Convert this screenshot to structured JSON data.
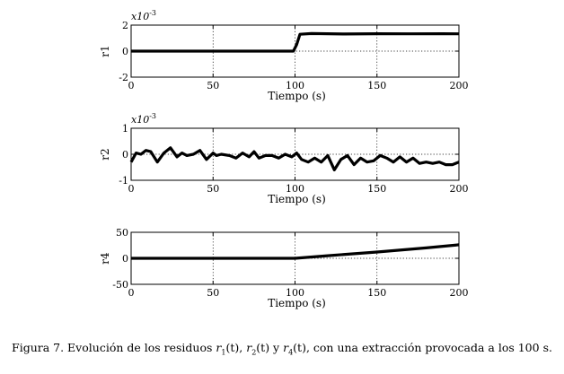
{
  "chart_data": [
    {
      "type": "line",
      "ylabel": "r1",
      "xlabel": "Tiempo (s)",
      "multiplier": "x10",
      "multiplier_exp": "-3",
      "xlim": [
        0,
        200
      ],
      "ylim": [
        -2,
        2
      ],
      "xticks": [
        "0",
        "50",
        "100",
        "150",
        "200"
      ],
      "yticks": [
        "2",
        "0",
        "-2"
      ],
      "ytick_values": [
        2,
        0,
        -2
      ],
      "grid": "dotted",
      "series": [
        {
          "name": "r1",
          "x": [
            0,
            99,
            101,
            103,
            110,
            130,
            150,
            170,
            190,
            200
          ],
          "y": [
            0,
            0,
            0.5,
            1.3,
            1.35,
            1.32,
            1.34,
            1.33,
            1.34,
            1.33
          ]
        }
      ]
    },
    {
      "type": "line",
      "ylabel": "r2",
      "xlabel": "Tiempo (s)",
      "multiplier": "x10",
      "multiplier_exp": "-3",
      "xlim": [
        0,
        200
      ],
      "ylim": [
        -1,
        1
      ],
      "xticks": [
        "0",
        "50",
        "100",
        "150",
        "200"
      ],
      "yticks": [
        "1",
        "0",
        "-1"
      ],
      "ytick_values": [
        1,
        0,
        -1
      ],
      "grid": "dotted",
      "series": [
        {
          "name": "r2",
          "x": [
            0,
            3,
            6,
            9,
            12,
            16,
            20,
            24,
            28,
            31,
            34,
            38,
            42,
            46,
            50,
            52,
            55,
            60,
            64,
            68,
            72,
            75,
            78,
            82,
            86,
            90,
            94,
            98,
            101,
            104,
            108,
            112,
            116,
            120,
            124,
            128,
            132,
            136,
            140,
            144,
            148,
            152,
            156,
            160,
            164,
            168,
            172,
            176,
            180,
            184,
            188,
            192,
            196,
            200
          ],
          "y": [
            -0.3,
            0.05,
            0.0,
            0.15,
            0.1,
            -0.3,
            0.05,
            0.25,
            -0.1,
            0.05,
            -0.05,
            0.0,
            0.15,
            -0.2,
            0.05,
            -0.05,
            0.0,
            -0.05,
            -0.15,
            0.05,
            -0.1,
            0.1,
            -0.15,
            -0.05,
            -0.05,
            -0.15,
            0.0,
            -0.1,
            0.05,
            -0.2,
            -0.3,
            -0.15,
            -0.3,
            -0.05,
            -0.6,
            -0.2,
            -0.05,
            -0.4,
            -0.15,
            -0.3,
            -0.25,
            -0.05,
            -0.15,
            -0.3,
            -0.1,
            -0.3,
            -0.15,
            -0.35,
            -0.3,
            -0.35,
            -0.3,
            -0.4,
            -0.4,
            -0.3
          ]
        }
      ]
    },
    {
      "type": "line",
      "ylabel": "r4",
      "xlabel": "Tiempo (s)",
      "xlim": [
        0,
        200
      ],
      "ylim": [
        -50,
        50
      ],
      "xticks": [
        "0",
        "50",
        "100",
        "150",
        "200"
      ],
      "yticks": [
        "50",
        "0",
        "-50"
      ],
      "ytick_values": [
        50,
        0,
        -50
      ],
      "grid": "dotted",
      "series": [
        {
          "name": "r4",
          "x": [
            0,
            100,
            120,
            150,
            180,
            200
          ],
          "y": [
            0,
            0,
            5,
            12,
            20,
            26
          ]
        }
      ]
    }
  ],
  "caption": {
    "prefix": "Figura 7. Evolución de los residuos ",
    "r1": "r",
    "r1_sub": "1",
    "r1_arg": "(t), ",
    "r2": "r",
    "r2_sub": "2",
    "r2_arg": "(t) y ",
    "r4": "r",
    "r4_sub": "4",
    "r4_arg": "(t)",
    "suffix": ", con una extracción provocada a los 100 s."
  }
}
